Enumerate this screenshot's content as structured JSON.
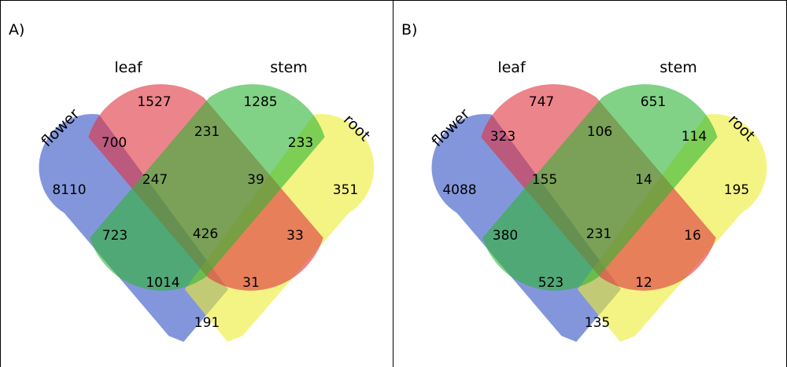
{
  "panels": [
    {
      "label": "A)",
      "set_labels": {
        "flower": "flower",
        "leaf": "leaf",
        "stem": "stem",
        "root": "root"
      },
      "counts": {
        "leaf_only": "1527",
        "stem_only": "1285",
        "flower_leaf": "700",
        "leaf_stem": "231",
        "stem_root": "233",
        "flower_only": "8110",
        "flower_leaf_stem": "247",
        "leaf_stem_root": "39",
        "root_only": "351",
        "flower_stem": "723",
        "all_four": "426",
        "leaf_root": "33",
        "flower_stem_root": "1014",
        "flower_leaf_root": "31",
        "flower_root": "191"
      }
    },
    {
      "label": "B)",
      "set_labels": {
        "flower": "flower",
        "leaf": "leaf",
        "stem": "stem",
        "root": "root"
      },
      "counts": {
        "leaf_only": "747",
        "stem_only": "651",
        "flower_leaf": "323",
        "leaf_stem": "106",
        "stem_root": "114",
        "flower_only": "4088",
        "flower_leaf_stem": "155",
        "leaf_stem_root": "14",
        "root_only": "195",
        "flower_stem": "380",
        "all_four": "231",
        "leaf_root": "16",
        "flower_stem_root": "523",
        "flower_leaf_root": "12",
        "flower_root": "135"
      }
    }
  ],
  "colors": {
    "flower": "#3352c4",
    "leaf": "#e0333f",
    "stem": "#2fb536",
    "root": "#eeee33"
  }
}
